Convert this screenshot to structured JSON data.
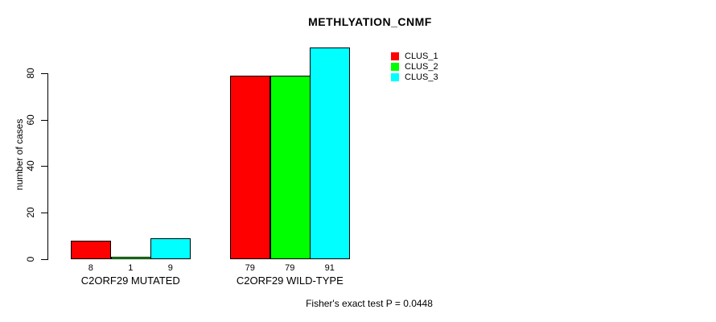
{
  "chart_data": {
    "type": "bar",
    "title": "METHLYATION_CNMF",
    "ylabel": "number of cases",
    "xlabel": "",
    "annotation": "Fisher's exact test P = 0.0448",
    "categories": [
      "C2ORF29 MUTATED",
      "C2ORF29 WILD-TYPE"
    ],
    "series": [
      {
        "name": "CLUS_1",
        "color": "#ff0000",
        "values": [
          8,
          79
        ]
      },
      {
        "name": "CLUS_2",
        "color": "#00ff00",
        "values": [
          1,
          79
        ]
      },
      {
        "name": "CLUS_3",
        "color": "#00ffff",
        "values": [
          9,
          91
        ]
      }
    ],
    "bar_value_labels": [
      [
        "8",
        "1",
        "9"
      ],
      [
        "79",
        "79",
        "91"
      ]
    ],
    "yticks": [
      0,
      20,
      40,
      60,
      80
    ],
    "ylim": [
      0,
      92
    ],
    "grid": false,
    "legend_position": "top-right-inside",
    "colors": {
      "axis": "#000000",
      "text": "#000000",
      "background": "#ffffff"
    }
  }
}
